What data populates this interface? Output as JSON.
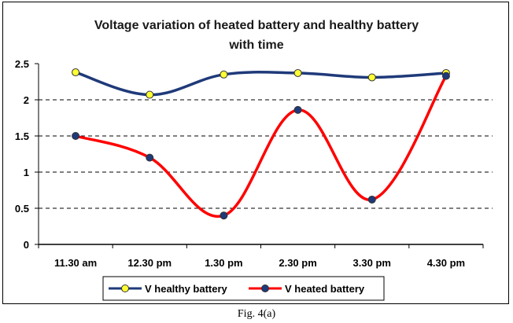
{
  "chart_data": {
    "type": "line",
    "title_lines": [
      "Voltage variation of heated battery and healthy  battery",
      "with time"
    ],
    "categories": [
      "11.30 am",
      "12.30 pm",
      "1.30 pm",
      "2.30 pm",
      "3.30 pm",
      "4.30 pm"
    ],
    "ylim": [
      0,
      2.5
    ],
    "yticks": [
      "0",
      "0.5",
      "1",
      "1.5",
      "2",
      "2.5"
    ],
    "grid": "dashed horizontal",
    "legend_position": "bottom",
    "series": [
      {
        "name": "V healthy battery",
        "values": [
          2.38,
          2.07,
          2.35,
          2.37,
          2.31,
          2.37
        ],
        "line_color": "#1f3a7a",
        "marker_color": "#ffff33"
      },
      {
        "name": "V heated battery",
        "values": [
          1.5,
          1.2,
          0.4,
          1.86,
          0.62,
          2.33
        ],
        "line_color": "#ff0000",
        "marker_color": "#1f3a7a"
      }
    ]
  },
  "caption": "Fig. 4(a)"
}
